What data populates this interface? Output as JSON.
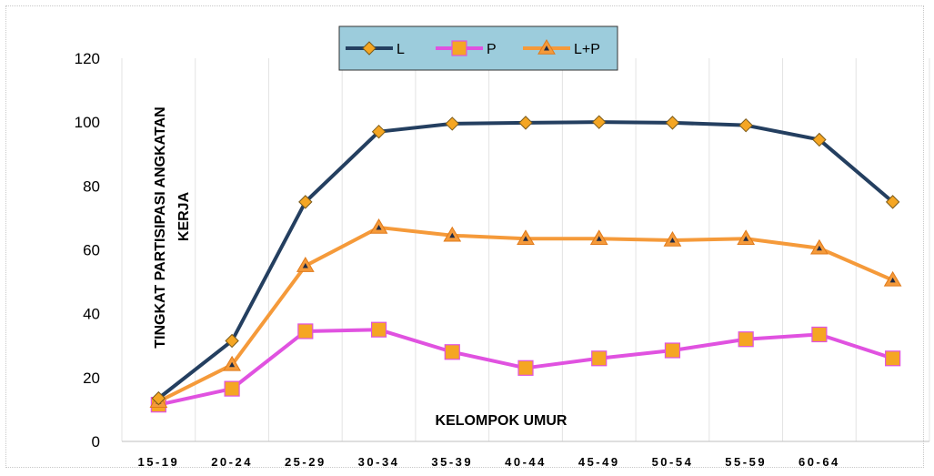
{
  "chart_data": {
    "type": "line",
    "title": "",
    "xlabel": "KELOMPOK UMUR",
    "ylabel_line1": "TINGKAT PARTISIPASI ANGKATAN",
    "ylabel_line2": "KERJA",
    "ylim": [
      0,
      120
    ],
    "yticks": [
      "0",
      "20",
      "40",
      "60",
      "80",
      "100",
      "120"
    ],
    "categories": [
      "15-19",
      "20-24",
      "25-29",
      "30-34",
      "35-39",
      "40-44",
      "45-49",
      "50-54",
      "55-59",
      "60-64",
      ""
    ],
    "grid": "vertical",
    "legend_position": "top-center",
    "series": [
      {
        "name": "L",
        "color": "#243F60",
        "marker": "diamond",
        "marker_color": "#F5A623",
        "values": [
          13.5,
          31.5,
          75,
          97,
          99.5,
          99.8,
          100,
          99.8,
          99,
          94.5,
          75
        ]
      },
      {
        "name": "P",
        "color": "#E052E0",
        "marker": "square",
        "marker_color": "#F5A623",
        "values": [
          11.5,
          16.5,
          34.5,
          35,
          28,
          23,
          26,
          28.5,
          32,
          33.5,
          26
        ]
      },
      {
        "name": "L+P",
        "color": "#F59A3A",
        "marker": "triangle",
        "marker_color": "#F59A3A",
        "values": [
          12.5,
          24,
          55,
          67,
          64.5,
          63.5,
          63.5,
          63,
          63.5,
          60.5,
          50.5
        ]
      }
    ]
  }
}
